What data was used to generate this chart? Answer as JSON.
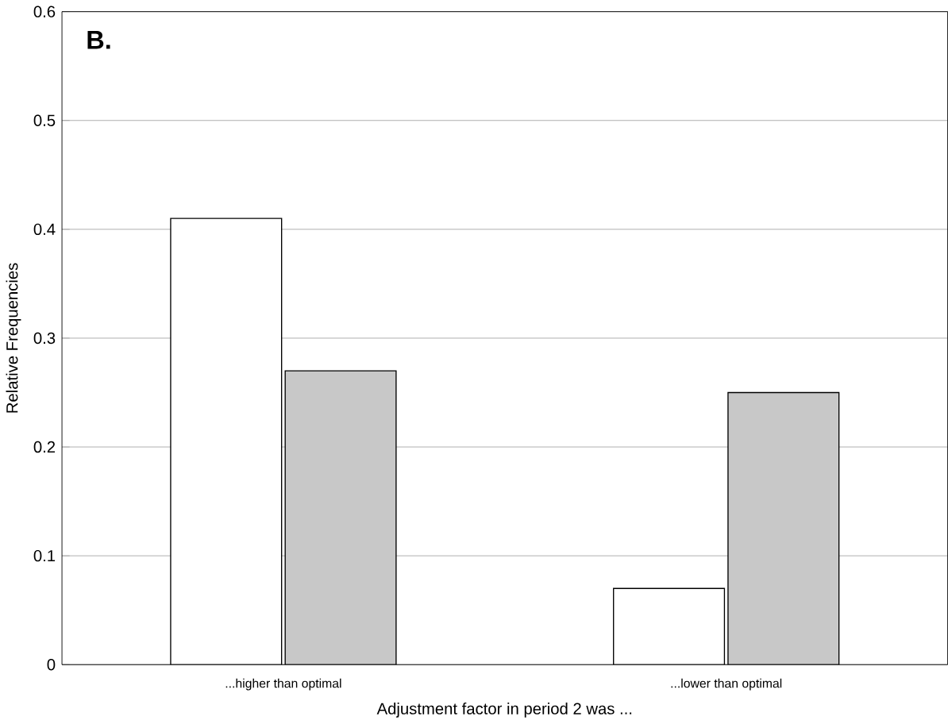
{
  "chart_data": {
    "type": "bar",
    "title": "B.",
    "xlabel": "Adjustment factor in period 2 was ...",
    "ylabel": "Relative Frequencies",
    "categories": [
      "...higher than optimal",
      "...lower than optimal"
    ],
    "series": [
      {
        "color": "#ffffff",
        "values": [
          0.41,
          0.07
        ]
      },
      {
        "color": "#c8c8c8",
        "values": [
          0.27,
          0.25
        ]
      }
    ],
    "ylim": [
      0,
      0.6
    ],
    "yticks": [
      0,
      0.1,
      0.2,
      0.3,
      0.4,
      0.5,
      0.6
    ],
    "grid": "y"
  }
}
